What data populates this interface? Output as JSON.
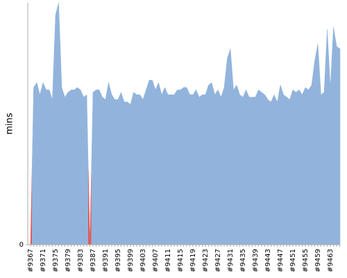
{
  "chart_data": {
    "type": "area",
    "y_label": "mins",
    "categories": [
      "#9367",
      null,
      null,
      null,
      "#9371",
      null,
      null,
      null,
      "#9375",
      null,
      null,
      null,
      "#9379",
      null,
      null,
      null,
      "#9383",
      null,
      null,
      null,
      "#9387",
      null,
      null,
      null,
      "#9391",
      null,
      null,
      null,
      "#9395",
      null,
      null,
      null,
      "#9399",
      null,
      null,
      null,
      "#9403",
      null,
      null,
      null,
      "#9407",
      null,
      null,
      null,
      "#9411",
      null,
      null,
      null,
      "#9415",
      null,
      null,
      null,
      "#9419",
      null,
      null,
      null,
      "#9423",
      null,
      null,
      null,
      "#9427",
      null,
      null,
      null,
      "#9431",
      null,
      null,
      null,
      "#9435",
      null,
      null,
      null,
      "#9439",
      null,
      null,
      null,
      "#9443",
      null,
      null,
      null,
      "#9447",
      null,
      null,
      null,
      "#9451",
      null,
      null,
      null,
      "#9455",
      null,
      null,
      null,
      "#9459",
      null,
      null,
      null,
      "#9463",
      null,
      null,
      null
    ],
    "values": [
      0,
      65,
      67,
      62,
      67,
      64,
      64,
      60,
      95,
      100,
      65,
      61,
      63,
      64,
      64,
      65,
      64,
      61,
      62,
      0,
      63,
      64,
      64,
      61,
      60,
      67,
      62,
      60,
      60,
      63,
      59,
      59,
      58,
      63,
      62,
      62,
      60,
      64,
      68,
      68,
      64,
      67,
      62,
      65,
      62,
      62,
      62,
      64,
      64,
      65,
      65,
      62,
      62,
      64,
      61,
      62,
      62,
      66,
      67,
      62,
      64,
      61,
      65,
      77,
      81,
      64,
      66,
      62,
      61,
      64,
      61,
      61,
      61,
      64,
      63,
      62,
      60,
      59,
      62,
      59,
      66,
      62,
      61,
      60,
      64,
      63,
      64,
      62,
      65,
      64,
      66,
      76,
      83,
      62,
      63,
      89,
      65,
      90,
      82,
      81
    ],
    "colors": [
      "#e05a5a",
      "#92b4dc",
      "#92b4dc",
      "#92b4dc",
      "#92b4dc",
      "#92b4dc",
      "#92b4dc",
      "#92b4dc",
      "#92b4dc",
      "#92b4dc",
      "#92b4dc",
      "#92b4dc",
      "#92b4dc",
      "#92b4dc",
      "#92b4dc",
      "#92b4dc",
      "#92b4dc",
      "#92b4dc",
      "#92b4dc",
      "#e05a5a",
      "#92b4dc",
      "#92b4dc",
      "#92b4dc",
      "#92b4dc",
      "#92b4dc",
      "#92b4dc",
      "#92b4dc",
      "#92b4dc",
      "#92b4dc",
      "#92b4dc",
      "#92b4dc",
      "#92b4dc",
      "#92b4dc",
      "#92b4dc",
      "#92b4dc",
      "#92b4dc",
      "#92b4dc",
      "#92b4dc",
      "#92b4dc",
      "#92b4dc",
      "#92b4dc",
      "#92b4dc",
      "#92b4dc",
      "#92b4dc",
      "#92b4dc",
      "#92b4dc",
      "#92b4dc",
      "#92b4dc",
      "#92b4dc",
      "#92b4dc",
      "#92b4dc",
      "#92b4dc",
      "#92b4dc",
      "#92b4dc",
      "#92b4dc",
      "#92b4dc",
      "#92b4dc",
      "#92b4dc",
      "#92b4dc",
      "#92b4dc",
      "#92b4dc",
      "#92b4dc",
      "#92b4dc",
      "#92b4dc",
      "#92b4dc",
      "#92b4dc",
      "#92b4dc",
      "#92b4dc",
      "#92b4dc",
      "#92b4dc",
      "#92b4dc",
      "#92b4dc",
      "#92b4dc",
      "#92b4dc",
      "#92b4dc",
      "#92b4dc",
      "#92b4dc",
      "#92b4dc",
      "#92b4dc",
      "#92b4dc",
      "#92b4dc",
      "#92b4dc",
      "#92b4dc",
      "#92b4dc",
      "#92b4dc",
      "#92b4dc",
      "#92b4dc",
      "#92b4dc",
      "#92b4dc",
      "#92b4dc",
      "#92b4dc",
      "#92b4dc",
      "#92b4dc",
      "#92b4dc",
      "#92b4dc",
      "#92b4dc",
      "#92b4dc",
      "#92b4dc",
      "#92b4dc",
      "#92b4dc"
    ],
    "ylim": [
      0,
      100
    ],
    "yticks": [
      0
    ]
  }
}
